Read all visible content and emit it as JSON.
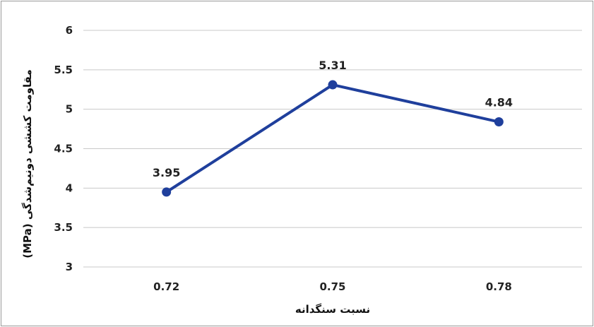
{
  "chart_data": {
    "type": "line",
    "categories": [
      "0.72",
      "0.75",
      "0.78"
    ],
    "series": [
      {
        "values": [
          3.95,
          5.31,
          4.84
        ],
        "color": "#1f3f9c"
      }
    ],
    "data_labels": [
      "3.95",
      "5.31",
      "4.84"
    ],
    "y_ticks": [
      "3",
      "3.5",
      "4",
      "4.5",
      "5",
      "5.5",
      "6"
    ],
    "ylim": [
      3,
      6
    ],
    "xlabel": "نسبت سنگدانه",
    "ylabel": "مقاومت کششی دونیم‌شدگی (MPa)",
    "grid": true
  }
}
